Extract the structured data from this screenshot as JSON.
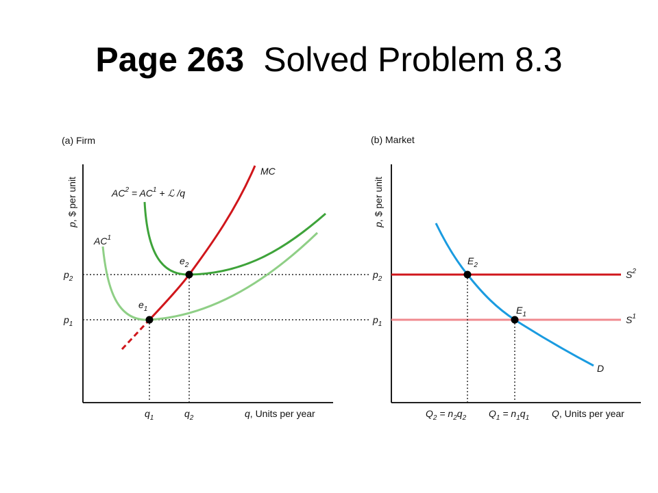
{
  "title": {
    "bold": "Page 263",
    "rest": "Solved Problem 8.3"
  },
  "chart_data": [
    {
      "panel_label": "(a) Firm",
      "type": "line",
      "ylabel": "p, $ per unit",
      "xlabel": "q, Units per year",
      "y_ticks": [
        "p2",
        "p1"
      ],
      "x_ticks": [
        "q1",
        "q2"
      ],
      "series": [
        {
          "name": "MC",
          "color": "#d0161b"
        },
        {
          "name": "AC1",
          "label": "AC1",
          "color": "#8fcf86"
        },
        {
          "name": "AC2",
          "label": "AC2 = AC1 + ℒ/q",
          "color": "#3ea33a"
        }
      ],
      "points": [
        {
          "label": "e1",
          "at": [
            "q1",
            "p1"
          ]
        },
        {
          "label": "e2",
          "at": [
            "q2",
            "p2"
          ]
        }
      ]
    },
    {
      "panel_label": "(b) Market",
      "type": "line",
      "ylabel": "p, $ per unit",
      "xlabel": "Q, Units per year",
      "y_ticks": [
        "p2",
        "p1"
      ],
      "x_ticks": [
        "Q2 = n2q2",
        "Q1 = n1q1"
      ],
      "series": [
        {
          "name": "D",
          "color": "#1a9be0"
        },
        {
          "name": "S2",
          "color": "#d0161b",
          "at_price": "p2"
        },
        {
          "name": "S1",
          "color": "#f08a8f",
          "at_price": "p1"
        }
      ],
      "points": [
        {
          "label": "E2",
          "at": [
            "Q2",
            "p2"
          ]
        },
        {
          "label": "E1",
          "at": [
            "Q1",
            "p1"
          ]
        }
      ]
    }
  ],
  "colors": {
    "mc": "#d0161b",
    "ac1": "#8fcf86",
    "ac2": "#3ea33a",
    "demand": "#1a9be0",
    "s2": "#d0161b",
    "s1": "#f08a8f"
  }
}
